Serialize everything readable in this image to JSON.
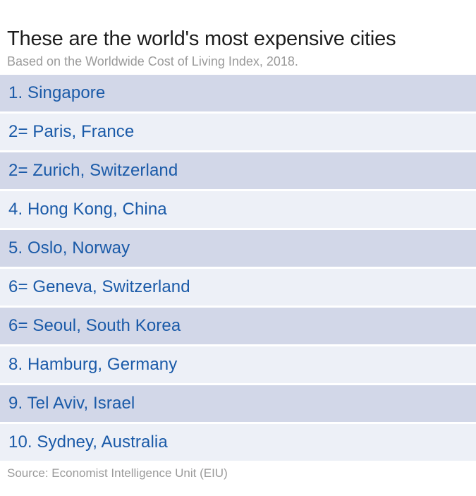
{
  "header": {
    "title": "These are the world's most expensive cities",
    "subtitle": "Based on the Worldwide Cost of Living Index, 2018."
  },
  "ranking": {
    "rows": [
      {
        "rank": "1.",
        "city": "Singapore",
        "label": "1. Singapore"
      },
      {
        "rank": "2=",
        "city": "Paris, France",
        "label": "2= Paris, France"
      },
      {
        "rank": "2=",
        "city": "Zurich, Switzerland",
        "label": "2= Zurich, Switzerland"
      },
      {
        "rank": "4.",
        "city": "Hong Kong, China",
        "label": "4. Hong Kong, China"
      },
      {
        "rank": "5.",
        "city": "Oslo, Norway",
        "label": "5. Oslo, Norway"
      },
      {
        "rank": "6=",
        "city": "Geneva, Switzerland",
        "label": "6= Geneva, Switzerland"
      },
      {
        "rank": "6=",
        "city": "Seoul, South Korea",
        "label": "6= Seoul, South Korea"
      },
      {
        "rank": "8.",
        "city": "Hamburg, Germany",
        "label": "8. Hamburg, Germany"
      },
      {
        "rank": "9.",
        "city": "Tel Aviv, Israel",
        "label": "9. Tel Aviv, Israel"
      },
      {
        "rank": "10.",
        "city": "Sydney, Australia",
        "label": "10. Sydney, Australia"
      }
    ]
  },
  "footer": {
    "source": "Source: Economist Intelligence Unit (EIU)"
  },
  "colors": {
    "row_odd_bg": "#d2d7e8",
    "row_even_bg": "#edf0f7",
    "row_text": "#1a5aa8",
    "title_text": "#1d1d1d",
    "muted_text": "#9a9a9a",
    "page_bg": "#ffffff"
  },
  "chart_data": {
    "type": "table",
    "title": "These are the world's most expensive cities",
    "subtitle": "Based on the Worldwide Cost of Living Index, 2018.",
    "columns": [
      "rank",
      "city"
    ],
    "rows": [
      [
        "1.",
        "Singapore"
      ],
      [
        "2=",
        "Paris, France"
      ],
      [
        "2=",
        "Zurich, Switzerland"
      ],
      [
        "4.",
        "Hong Kong, China"
      ],
      [
        "5.",
        "Oslo, Norway"
      ],
      [
        "6=",
        "Geneva, Switzerland"
      ],
      [
        "6=",
        "Seoul, South Korea"
      ],
      [
        "8.",
        "Hamburg, Germany"
      ],
      [
        "9.",
        "Tel Aviv, Israel"
      ],
      [
        "10.",
        "Sydney, Australia"
      ]
    ],
    "source": "Source: Economist Intelligence Unit (EIU)",
    "layout": {
      "row_striping": "alternating",
      "stripe_colors": [
        "#d2d7e8",
        "#edf0f7"
      ]
    }
  }
}
